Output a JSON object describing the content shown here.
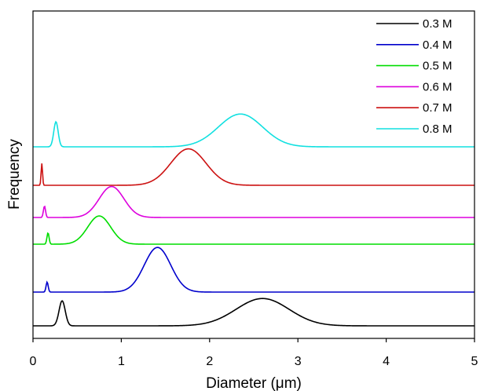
{
  "chart_data": {
    "type": "line",
    "xlabel": "Diameter (μm)",
    "ylabel": "Frequency",
    "xlim": [
      0,
      5
    ],
    "x_ticks": [
      0,
      1,
      2,
      3,
      4,
      5
    ],
    "y_ticks_shown": false,
    "grid": false,
    "legend_position": "top-right",
    "stacked_offset": true,
    "series": [
      {
        "name": "0.3 M",
        "color": "#000000",
        "peaks": [
          {
            "center": 0.33,
            "sigma": 0.035,
            "height": 0.55
          },
          {
            "center": 2.6,
            "sigma": 0.3,
            "height": 0.6
          }
        ]
      },
      {
        "name": "0.4 M",
        "color": "#0000cc",
        "peaks": [
          {
            "center": 0.16,
            "sigma": 0.012,
            "height": 0.22
          },
          {
            "center": 1.41,
            "sigma": 0.15,
            "height": 0.98
          }
        ]
      },
      {
        "name": "0.5 M",
        "color": "#00dd00",
        "peaks": [
          {
            "center": 0.17,
            "sigma": 0.012,
            "height": 0.25
          },
          {
            "center": 0.75,
            "sigma": 0.13,
            "height": 0.62
          }
        ]
      },
      {
        "name": "0.6 M",
        "color": "#dd00dd",
        "peaks": [
          {
            "center": 0.13,
            "sigma": 0.012,
            "height": 0.25
          },
          {
            "center": 0.89,
            "sigma": 0.14,
            "height": 0.68
          }
        ]
      },
      {
        "name": "0.7 M",
        "color": "#cc1111",
        "peaks": [
          {
            "center": 0.1,
            "sigma": 0.008,
            "height": 0.48
          },
          {
            "center": 1.76,
            "sigma": 0.2,
            "height": 0.8
          }
        ]
      },
      {
        "name": "0.8 M",
        "color": "#11e0e0",
        "peaks": [
          {
            "center": 0.26,
            "sigma": 0.025,
            "height": 0.55
          },
          {
            "center": 2.35,
            "sigma": 0.25,
            "height": 0.72
          }
        ]
      }
    ]
  }
}
